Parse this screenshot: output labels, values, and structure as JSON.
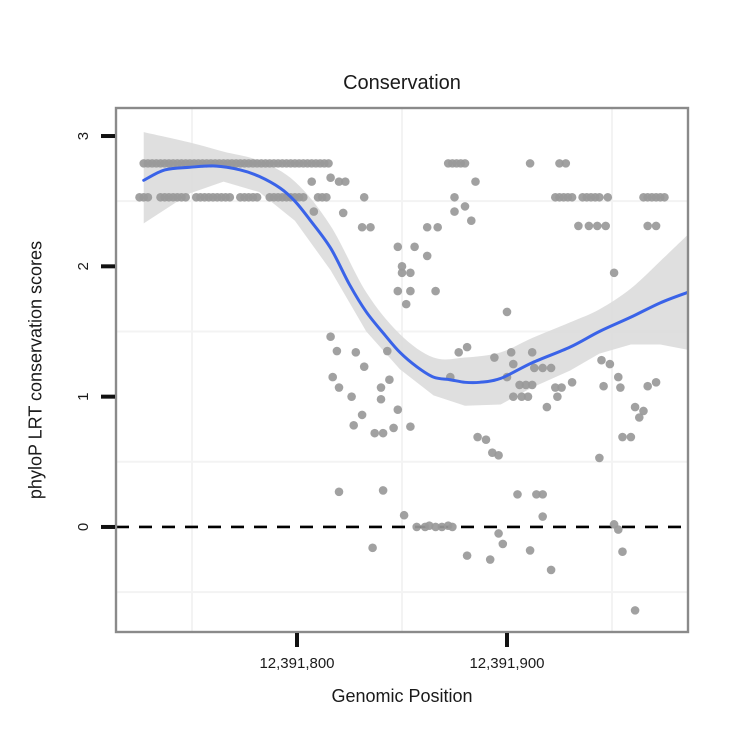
{
  "title": "Conservation",
  "axes": {
    "x": {
      "label": "Genomic Position",
      "ticks": [
        {
          "value": 12391800,
          "label": "12,391,800"
        },
        {
          "value": 12391900,
          "label": "12,391,900"
        }
      ],
      "minor_gridlines": [
        12391750,
        12391850,
        12391950
      ]
    },
    "y": {
      "label": "phyloP LRT conservation scores",
      "ticks": [
        {
          "value": 0,
          "label": "0"
        },
        {
          "value": 1,
          "label": "1"
        },
        {
          "value": 2,
          "label": "2"
        },
        {
          "value": 3,
          "label": "3"
        }
      ],
      "minor_gridlines": [
        -0.5,
        0.5,
        1.5,
        2.5
      ]
    }
  },
  "colors": {
    "point": "#999999",
    "smooth_line": "#3a63e8",
    "confidence_band": "#d9d9d9",
    "zero_line": "#000000",
    "panel_border": "#8a8a8a",
    "panel_bg": "#ffffff",
    "gridline": "#f3f3f3",
    "tick": "#111111",
    "text": "#1a1a1a"
  },
  "chart_data": {
    "type": "scatter",
    "title": "Conservation",
    "xlabel": "Genomic Position",
    "ylabel": "phyloP LRT conservation scores",
    "xlim": [
      12391713.8,
      12391986.2
    ],
    "ylim": [
      -0.806,
      3.215
    ],
    "reference_line_y": 0,
    "legend": "none",
    "grid": "minor-only",
    "points": [
      [
        12391727,
        2.79
      ],
      [
        12391729,
        2.79
      ],
      [
        12391731,
        2.79
      ],
      [
        12391733,
        2.79
      ],
      [
        12391735,
        2.79
      ],
      [
        12391737,
        2.79
      ],
      [
        12391739,
        2.79
      ],
      [
        12391741,
        2.79
      ],
      [
        12391743,
        2.79
      ],
      [
        12391745,
        2.79
      ],
      [
        12391747,
        2.79
      ],
      [
        12391749,
        2.79
      ],
      [
        12391751,
        2.79
      ],
      [
        12391753,
        2.79
      ],
      [
        12391755,
        2.79
      ],
      [
        12391757,
        2.79
      ],
      [
        12391759,
        2.79
      ],
      [
        12391761,
        2.79
      ],
      [
        12391763,
        2.79
      ],
      [
        12391765,
        2.79
      ],
      [
        12391767,
        2.79
      ],
      [
        12391769,
        2.79
      ],
      [
        12391771,
        2.79
      ],
      [
        12391773,
        2.79
      ],
      [
        12391775,
        2.79
      ],
      [
        12391777,
        2.79
      ],
      [
        12391779,
        2.79
      ],
      [
        12391781,
        2.79
      ],
      [
        12391783,
        2.79
      ],
      [
        12391785,
        2.79
      ],
      [
        12391787,
        2.79
      ],
      [
        12391789,
        2.79
      ],
      [
        12391791,
        2.79
      ],
      [
        12391793,
        2.79
      ],
      [
        12391795,
        2.79
      ],
      [
        12391797,
        2.79
      ],
      [
        12391799,
        2.79
      ],
      [
        12391801,
        2.79
      ],
      [
        12391803,
        2.79
      ],
      [
        12391805,
        2.79
      ],
      [
        12391807,
        2.79
      ],
      [
        12391809,
        2.79
      ],
      [
        12391811,
        2.79
      ],
      [
        12391813,
        2.79
      ],
      [
        12391815,
        2.79
      ],
      [
        12391872,
        2.79
      ],
      [
        12391874,
        2.79
      ],
      [
        12391876,
        2.79
      ],
      [
        12391878,
        2.79
      ],
      [
        12391880,
        2.79
      ],
      [
        12391911,
        2.79
      ],
      [
        12391925,
        2.79
      ],
      [
        12391928,
        2.79
      ],
      [
        12391725,
        2.53
      ],
      [
        12391727,
        2.53
      ],
      [
        12391729,
        2.53
      ],
      [
        12391735,
        2.53
      ],
      [
        12391737,
        2.53
      ],
      [
        12391739,
        2.53
      ],
      [
        12391741,
        2.53
      ],
      [
        12391743,
        2.53
      ],
      [
        12391745,
        2.53
      ],
      [
        12391747,
        2.53
      ],
      [
        12391752,
        2.53
      ],
      [
        12391754,
        2.53
      ],
      [
        12391756,
        2.53
      ],
      [
        12391758,
        2.53
      ],
      [
        12391760,
        2.53
      ],
      [
        12391762,
        2.53
      ],
      [
        12391764,
        2.53
      ],
      [
        12391766,
        2.53
      ],
      [
        12391768,
        2.53
      ],
      [
        12391773,
        2.53
      ],
      [
        12391775,
        2.53
      ],
      [
        12391777,
        2.53
      ],
      [
        12391779,
        2.53
      ],
      [
        12391781,
        2.53
      ],
      [
        12391787,
        2.53
      ],
      [
        12391789,
        2.53
      ],
      [
        12391791,
        2.53
      ],
      [
        12391793,
        2.53
      ],
      [
        12391795,
        2.53
      ],
      [
        12391797,
        2.53
      ],
      [
        12391799,
        2.53
      ],
      [
        12391801,
        2.53
      ],
      [
        12391803,
        2.53
      ],
      [
        12391810,
        2.53
      ],
      [
        12391812,
        2.53
      ],
      [
        12391814,
        2.53
      ],
      [
        12391832,
        2.53
      ],
      [
        12391875,
        2.53
      ],
      [
        12391923,
        2.53
      ],
      [
        12391925,
        2.53
      ],
      [
        12391927,
        2.53
      ],
      [
        12391929,
        2.53
      ],
      [
        12391931,
        2.53
      ],
      [
        12391936,
        2.53
      ],
      [
        12391938,
        2.53
      ],
      [
        12391940,
        2.53
      ],
      [
        12391942,
        2.53
      ],
      [
        12391944,
        2.53
      ],
      [
        12391948,
        2.53
      ],
      [
        12391965,
        2.53
      ],
      [
        12391967,
        2.53
      ],
      [
        12391969,
        2.53
      ],
      [
        12391971,
        2.53
      ],
      [
        12391973,
        2.53
      ],
      [
        12391975,
        2.53
      ],
      [
        12391934,
        2.31
      ],
      [
        12391939,
        2.31
      ],
      [
        12391943,
        2.31
      ],
      [
        12391947,
        2.31
      ],
      [
        12391967,
        2.31
      ],
      [
        12391971,
        2.31
      ],
      [
        12391807,
        2.65
      ],
      [
        12391816,
        2.68
      ],
      [
        12391820,
        2.65
      ],
      [
        12391823,
        2.65
      ],
      [
        12391885,
        2.65
      ],
      [
        12391808,
        2.42
      ],
      [
        12391822,
        2.41
      ],
      [
        12391875,
        2.42
      ],
      [
        12391880,
        2.46
      ],
      [
        12391883,
        2.35
      ],
      [
        12391831,
        2.3
      ],
      [
        12391835,
        2.3
      ],
      [
        12391862,
        2.3
      ],
      [
        12391867,
        2.3
      ],
      [
        12391848,
        2.15
      ],
      [
        12391856,
        2.15
      ],
      [
        12391862,
        2.08
      ],
      [
        12391850,
        2.0
      ],
      [
        12391850,
        1.95
      ],
      [
        12391854,
        1.95
      ],
      [
        12391951,
        1.95
      ],
      [
        12391848,
        1.81
      ],
      [
        12391854,
        1.81
      ],
      [
        12391866,
        1.81
      ],
      [
        12391852,
        1.71
      ],
      [
        12391900,
        1.65
      ],
      [
        12391816,
        1.46
      ],
      [
        12391819,
        1.35
      ],
      [
        12391828,
        1.34
      ],
      [
        12391843,
        1.35
      ],
      [
        12391832,
        1.23
      ],
      [
        12391817,
        1.15
      ],
      [
        12391820,
        1.07
      ],
      [
        12391826,
        1.0
      ],
      [
        12391844,
        1.13
      ],
      [
        12391840,
        1.07
      ],
      [
        12391840,
        0.98
      ],
      [
        12391848,
        0.9
      ],
      [
        12391831,
        0.86
      ],
      [
        12391827,
        0.78
      ],
      [
        12391837,
        0.72
      ],
      [
        12391841,
        0.72
      ],
      [
        12391846,
        0.76
      ],
      [
        12391854,
        0.77
      ],
      [
        12391873,
        1.15
      ],
      [
        12391877,
        1.34
      ],
      [
        12391881,
        1.38
      ],
      [
        12391894,
        1.3
      ],
      [
        12391886,
        0.69
      ],
      [
        12391890,
        0.67
      ],
      [
        12391902,
        1.34
      ],
      [
        12391912,
        1.34
      ],
      [
        12391903,
        1.25
      ],
      [
        12391913,
        1.22
      ],
      [
        12391917,
        1.22
      ],
      [
        12391921,
        1.22
      ],
      [
        12391900,
        1.15
      ],
      [
        12391906,
        1.09
      ],
      [
        12391909,
        1.09
      ],
      [
        12391912,
        1.09
      ],
      [
        12391903,
        1.0
      ],
      [
        12391907,
        1.0
      ],
      [
        12391910,
        1.0
      ],
      [
        12391923,
        1.07
      ],
      [
        12391926,
        1.07
      ],
      [
        12391924,
        1.0
      ],
      [
        12391931,
        1.11
      ],
      [
        12391919,
        0.92
      ],
      [
        12391945,
        1.28
      ],
      [
        12391949,
        1.25
      ],
      [
        12391946,
        1.08
      ],
      [
        12391953,
        1.15
      ],
      [
        12391954,
        1.07
      ],
      [
        12391967,
        1.08
      ],
      [
        12391971,
        1.11
      ],
      [
        12391961,
        0.92
      ],
      [
        12391965,
        0.89
      ],
      [
        12391963,
        0.84
      ],
      [
        12391955,
        0.69
      ],
      [
        12391959,
        0.69
      ],
      [
        12391944,
        0.53
      ],
      [
        12391893,
        0.57
      ],
      [
        12391896,
        0.55
      ],
      [
        12391820,
        0.27
      ],
      [
        12391841,
        0.28
      ],
      [
        12391905,
        0.25
      ],
      [
        12391914,
        0.25
      ],
      [
        12391917,
        0.25
      ],
      [
        12391851,
        0.09
      ],
      [
        12391917,
        0.08
      ],
      [
        12391857,
        0.0
      ],
      [
        12391861,
        0.0
      ],
      [
        12391863,
        0.01
      ],
      [
        12391866,
        0.0
      ],
      [
        12391869,
        0.0
      ],
      [
        12391872,
        0.01
      ],
      [
        12391874,
        0.0
      ],
      [
        12391951,
        0.02
      ],
      [
        12391953,
        -0.02
      ],
      [
        12391836,
        -0.16
      ],
      [
        12391896,
        -0.05
      ],
      [
        12391898,
        -0.13
      ],
      [
        12391911,
        -0.18
      ],
      [
        12391921,
        -0.33
      ],
      [
        12391881,
        -0.22
      ],
      [
        12391892,
        -0.25
      ],
      [
        12391955,
        -0.19
      ],
      [
        12391961,
        -0.64
      ]
    ],
    "smooth_line": [
      [
        12391727,
        2.66
      ],
      [
        12391737,
        2.74
      ],
      [
        12391749,
        2.76
      ],
      [
        12391761,
        2.77
      ],
      [
        12391773,
        2.74
      ],
      [
        12391782,
        2.69
      ],
      [
        12391792,
        2.6
      ],
      [
        12391799,
        2.5
      ],
      [
        12391806,
        2.36
      ],
      [
        12391816,
        2.14
      ],
      [
        12391825,
        1.86
      ],
      [
        12391833,
        1.65
      ],
      [
        12391842,
        1.47
      ],
      [
        12391849,
        1.34
      ],
      [
        12391857,
        1.23
      ],
      [
        12391865,
        1.15
      ],
      [
        12391873,
        1.13
      ],
      [
        12391880,
        1.11
      ],
      [
        12391887,
        1.11
      ],
      [
        12391897,
        1.14
      ],
      [
        12391912,
        1.26
      ],
      [
        12391930,
        1.38
      ],
      [
        12391944,
        1.5
      ],
      [
        12391959,
        1.61
      ],
      [
        12391973,
        1.72
      ],
      [
        12391986,
        1.8
      ]
    ],
    "confidence_band": [
      [
        12391727,
        2.33,
        3.03
      ],
      [
        12391749,
        2.56,
        2.95
      ],
      [
        12391765,
        2.65,
        2.88
      ],
      [
        12391782,
        2.57,
        2.81
      ],
      [
        12391799,
        2.35,
        2.65
      ],
      [
        12391816,
        1.97,
        2.31
      ],
      [
        12391833,
        1.5,
        1.8
      ],
      [
        12391849,
        1.21,
        1.48
      ],
      [
        12391865,
        1.01,
        1.3
      ],
      [
        12391880,
        0.93,
        1.3
      ],
      [
        12391897,
        0.94,
        1.34
      ],
      [
        12391912,
        1.07,
        1.45
      ],
      [
        12391930,
        1.2,
        1.57
      ],
      [
        12391944,
        1.33,
        1.67
      ],
      [
        12391959,
        1.4,
        1.83
      ],
      [
        12391973,
        1.4,
        2.04
      ],
      [
        12391986,
        1.36,
        2.24
      ]
    ]
  }
}
